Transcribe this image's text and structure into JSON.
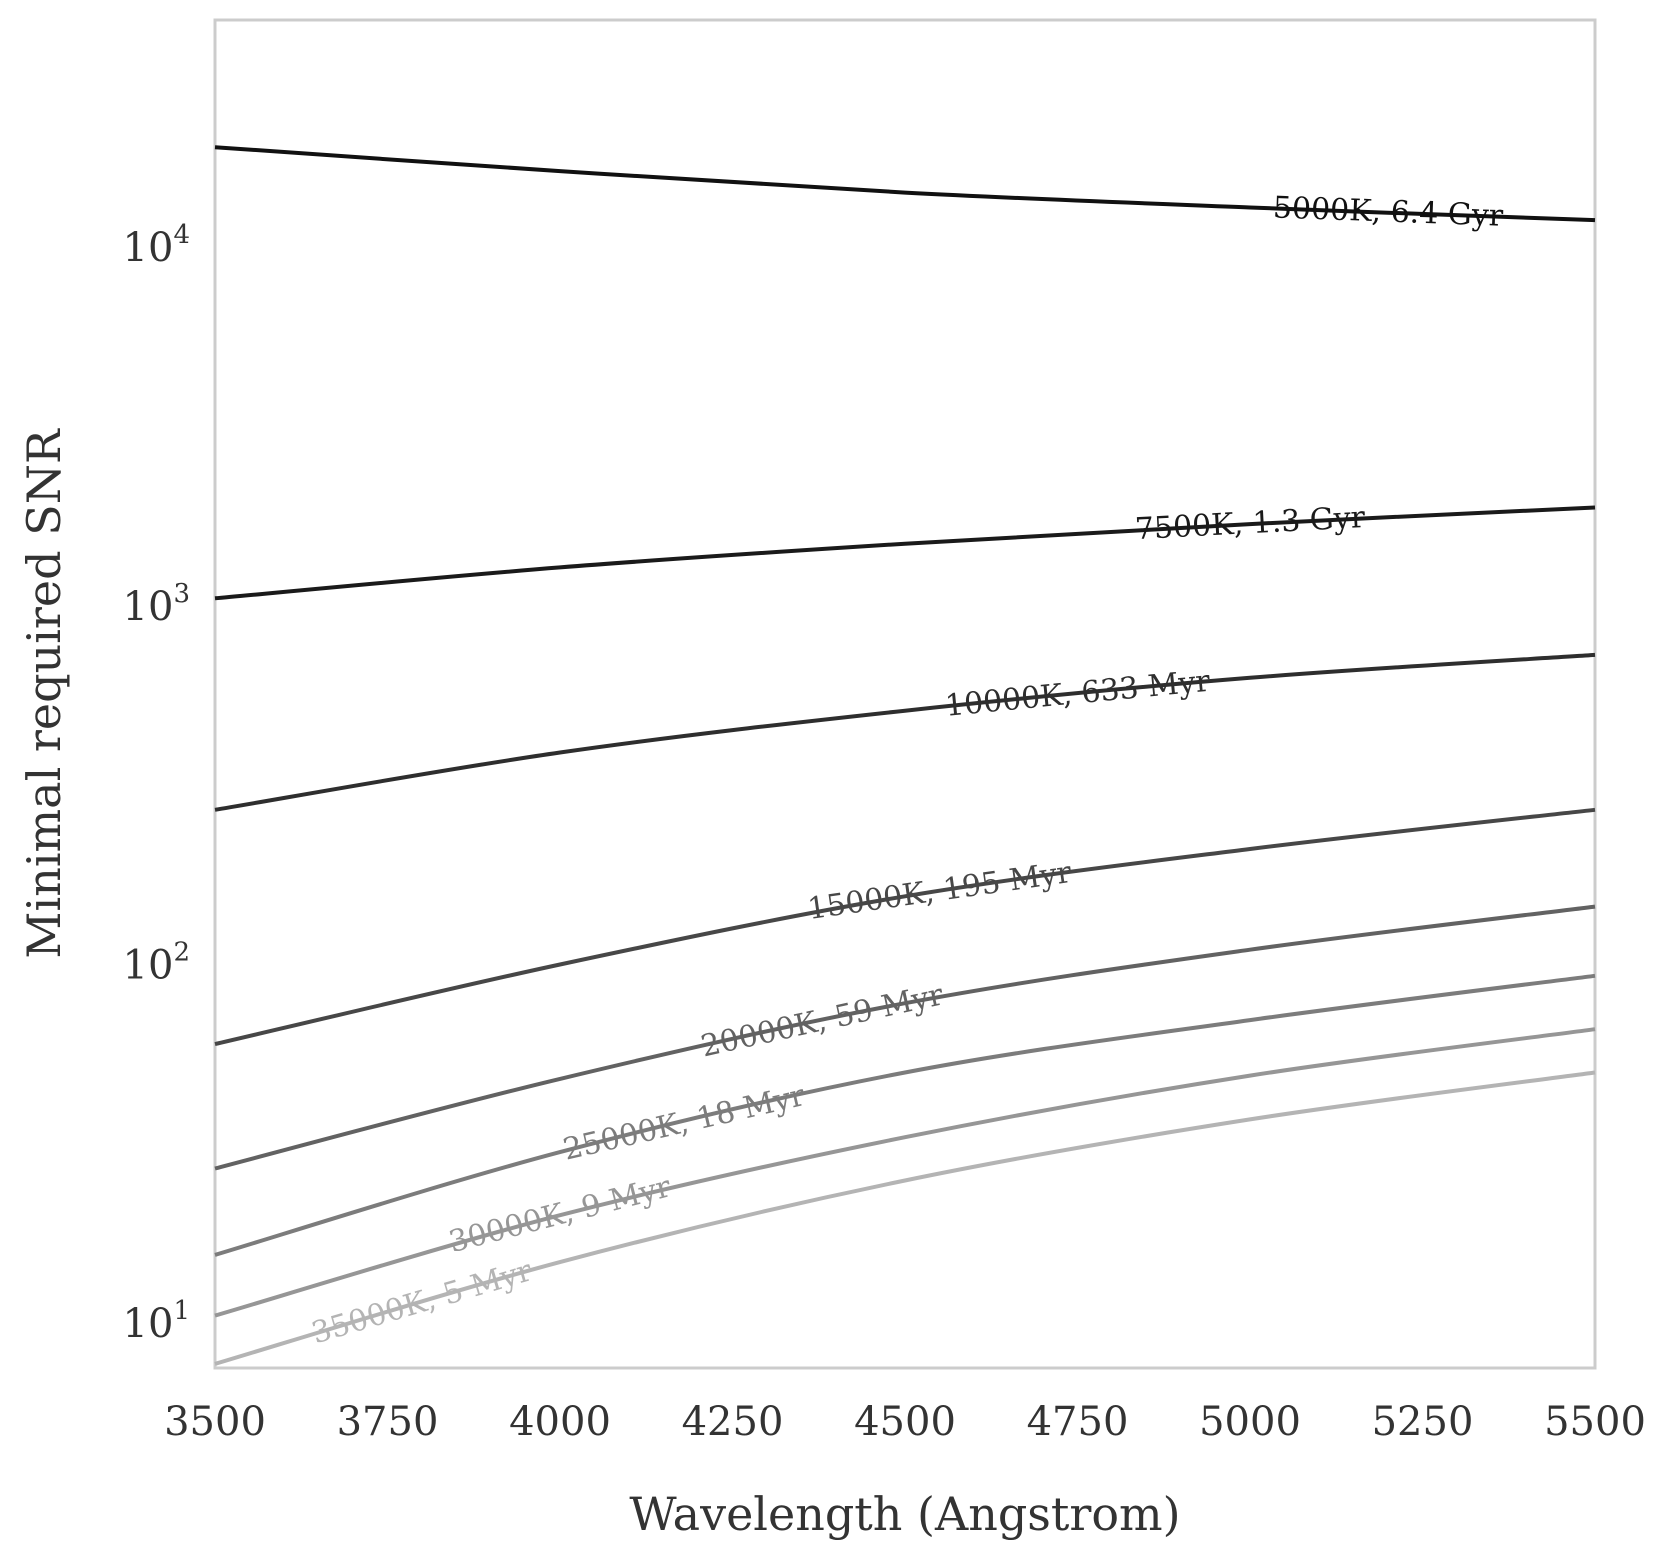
{
  "chart_data": {
    "type": "line",
    "title": "",
    "xlabel": "Wavelength (Angstrom)",
    "ylabel": "Minimal required SNR",
    "xlim": [
      3500,
      5500
    ],
    "ylim": [
      7.5,
      43000
    ],
    "yscale": "log",
    "grid": false,
    "legend": "none (inline labels on curves)",
    "xticks": [
      "3500",
      "3750",
      "4000",
      "4250",
      "4500",
      "4750",
      "5000",
      "5250",
      "5500"
    ],
    "yticks": [
      {
        "base": "10",
        "exp": "1",
        "value": 10
      },
      {
        "base": "10",
        "exp": "2",
        "value": 100
      },
      {
        "base": "10",
        "exp": "3",
        "value": 1000
      },
      {
        "base": "10",
        "exp": "4",
        "value": 10000
      }
    ],
    "series": [
      {
        "name": "5000K,   6.4 Gyr",
        "color": "#111111",
        "x": [
          3500,
          4000,
          4500,
          5000,
          5500
        ],
        "y": [
          19000,
          16300,
          14200,
          12900,
          11900
        ],
        "label_x": 5200
      },
      {
        "name": "7500K,   1.3 Gyr",
        "color": "#1a1a1a",
        "x": [
          3500,
          4000,
          4500,
          5000,
          5500
        ],
        "y": [
          1050,
          1280,
          1490,
          1690,
          1880
        ],
        "label_x": 5000
      },
      {
        "name": "10000K,   633 Myr",
        "color": "#2e2e2e",
        "x": [
          3500,
          4000,
          4500,
          5000,
          5500
        ],
        "y": [
          270,
          390,
          510,
          630,
          730
        ],
        "label_x": 4750
      },
      {
        "name": "15000K,   195 Myr",
        "color": "#474747",
        "x": [
          3500,
          4000,
          4500,
          5000,
          5500
        ],
        "y": [
          60,
          100,
          155,
          210,
          270
        ],
        "label_x": 4550
      },
      {
        "name": "20000K,   59 Myr",
        "color": "#626262",
        "x": [
          3500,
          4000,
          4500,
          5000,
          5500
        ],
        "y": [
          27,
          48,
          78,
          110,
          145
        ],
        "label_x": 4380
      },
      {
        "name": "25000K,   18 Myr",
        "color": "#7c7c7c",
        "x": [
          3500,
          4000,
          4500,
          5000,
          5500
        ],
        "y": [
          15.5,
          30,
          50,
          70,
          93
        ],
        "label_x": 4180
      },
      {
        "name": "30000K,   9 Myr",
        "color": "#969696",
        "x": [
          3500,
          4000,
          4500,
          5000,
          5500
        ],
        "y": [
          10.5,
          20,
          33,
          49,
          66
        ],
        "label_x": 4000
      },
      {
        "name": "35000K,   5 Myr",
        "color": "#b4b4b4",
        "x": [
          3500,
          4000,
          4500,
          5000,
          5500
        ],
        "y": [
          7.7,
          14.8,
          25,
          37,
          50
        ],
        "label_x": 3800
      }
    ]
  }
}
